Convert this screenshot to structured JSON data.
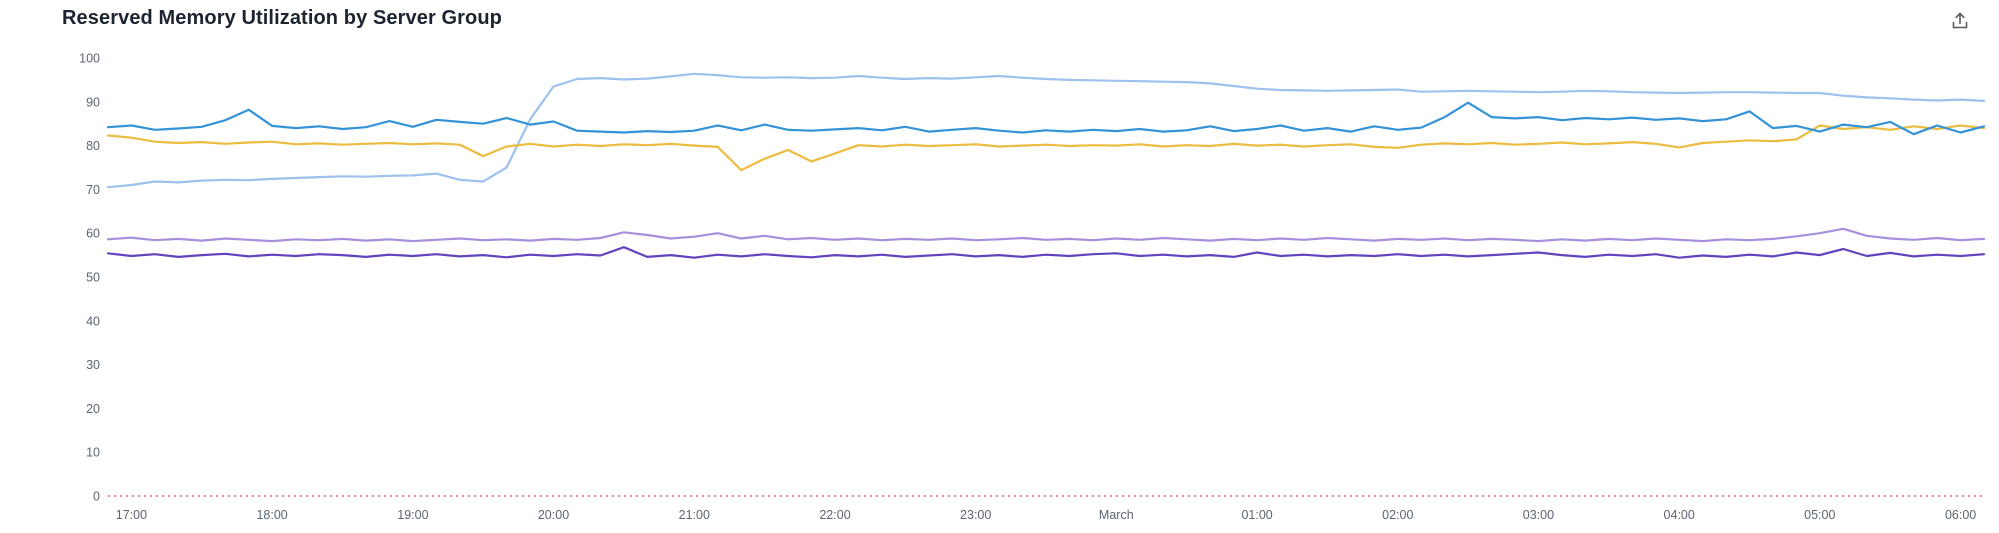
{
  "header": {
    "title": "Reserved Memory Utilization by Server Group"
  },
  "chart_data": {
    "type": "line",
    "title": "Reserved Memory Utilization by Server Group",
    "legend": "none",
    "grid": false,
    "x_axis": {
      "start_time": "16:50",
      "end_time": "06:10",
      "sample_interval_minutes": 10,
      "range_minutes": [
        0,
        800
      ],
      "tick_labels": [
        "17:00",
        "18:00",
        "19:00",
        "20:00",
        "21:00",
        "22:00",
        "23:00",
        "March",
        "01:00",
        "02:00",
        "03:00",
        "04:00",
        "05:00",
        "06:00"
      ],
      "tick_minutes": [
        10,
        70,
        130,
        190,
        250,
        310,
        370,
        430,
        490,
        550,
        610,
        670,
        730,
        790
      ]
    },
    "y_axis": {
      "min": 0,
      "max": 100,
      "ticks": [
        0,
        10,
        20,
        30,
        40,
        50,
        60,
        70,
        80,
        90,
        100
      ]
    },
    "threshold_line": {
      "value": 0,
      "color": "#d13212",
      "style": "dashed"
    },
    "series": [
      {
        "name": "light-blue",
        "color": "#9dc2ee",
        "values": [
          70.5,
          71,
          71.8,
          71.6,
          72,
          72.2,
          72.1,
          72.4,
          72.6,
          72.8,
          73,
          72.9,
          73.1,
          73.2,
          73.6,
          72.2,
          71.8,
          75,
          86,
          93.5,
          95.2,
          95.4,
          95.1,
          95.3,
          95.8,
          96.4,
          96.1,
          95.6,
          95.5,
          95.6,
          95.4,
          95.5,
          95.9,
          95.5,
          95.2,
          95.4,
          95.3,
          95.6,
          95.9,
          95.5,
          95.2,
          95,
          94.9,
          94.8,
          94.7,
          94.6,
          94.5,
          94.2,
          93.6,
          93,
          92.7,
          92.6,
          92.5,
          92.6,
          92.7,
          92.8,
          92.3,
          92.4,
          92.5,
          92.4,
          92.3,
          92.2,
          92.3,
          92.5,
          92.4,
          92.2,
          92.1,
          92,
          92.1,
          92.2,
          92.2,
          92.1,
          92,
          92,
          91.4,
          91,
          90.8,
          90.5,
          90.3,
          90.5,
          90.2
        ]
      },
      {
        "name": "gold",
        "color": "#ecbc41",
        "values": [
          82.3,
          81.8,
          80.9,
          80.6,
          80.8,
          80.4,
          80.7,
          80.9,
          80.3,
          80.5,
          80.2,
          80.4,
          80.6,
          80.3,
          80.5,
          80.2,
          77.6,
          79.8,
          80.4,
          79.8,
          80.2,
          79.9,
          80.3,
          80.1,
          80.4,
          80,
          79.7,
          74.4,
          77,
          79,
          76.4,
          78.2,
          80.1,
          79.8,
          80.2,
          79.9,
          80.1,
          80.3,
          79.8,
          80,
          80.2,
          79.9,
          80.1,
          80,
          80.3,
          79.8,
          80.1,
          79.9,
          80.4,
          80,
          80.2,
          79.8,
          80.1,
          80.3,
          79.7,
          79.5,
          80.2,
          80.5,
          80.3,
          80.6,
          80.2,
          80.4,
          80.7,
          80.3,
          80.5,
          80.8,
          80.4,
          79.6,
          80.6,
          80.9,
          81.2,
          81,
          81.4,
          84.6,
          83.8,
          84.2,
          83.6,
          84.4,
          83.8,
          84.6,
          84
        ]
      },
      {
        "name": "blue",
        "color": "#3493d6",
        "values": [
          84.2,
          84.6,
          83.6,
          83.9,
          84.3,
          85.8,
          88.2,
          84.5,
          84,
          84.4,
          83.8,
          84.2,
          85.6,
          84.3,
          85.9,
          85.4,
          85,
          86.3,
          84.8,
          85.5,
          83.4,
          83.2,
          83,
          83.3,
          83.1,
          83.4,
          84.6,
          83.5,
          84.8,
          83.6,
          83.4,
          83.7,
          84,
          83.5,
          84.3,
          83.2,
          83.6,
          84,
          83.4,
          83,
          83.5,
          83.2,
          83.6,
          83.3,
          83.8,
          83.2,
          83.5,
          84.4,
          83.3,
          83.8,
          84.6,
          83.4,
          84,
          83.2,
          84.4,
          83.6,
          84.1,
          86.5,
          89.8,
          86.5,
          86.2,
          86.5,
          85.8,
          86.3,
          86,
          86.4,
          85.9,
          86.2,
          85.6,
          86,
          87.8,
          84,
          84.5,
          83.2,
          84.8,
          84.2,
          85.4,
          82.6,
          84.6,
          83,
          84.4
        ]
      },
      {
        "name": "light-purple",
        "color": "#a78fdd",
        "values": [
          58.6,
          59,
          58.4,
          58.7,
          58.3,
          58.8,
          58.5,
          58.2,
          58.6,
          58.4,
          58.7,
          58.3,
          58.6,
          58.2,
          58.5,
          58.8,
          58.4,
          58.6,
          58.3,
          58.7,
          58.5,
          58.9,
          60.2,
          59.6,
          58.8,
          59.2,
          60,
          58.8,
          59.4,
          58.6,
          58.9,
          58.5,
          58.8,
          58.4,
          58.7,
          58.5,
          58.8,
          58.4,
          58.6,
          58.9,
          58.5,
          58.7,
          58.4,
          58.8,
          58.5,
          58.9,
          58.6,
          58.3,
          58.7,
          58.4,
          58.8,
          58.5,
          58.9,
          58.6,
          58.3,
          58.7,
          58.5,
          58.8,
          58.4,
          58.7,
          58.5,
          58.2,
          58.6,
          58.3,
          58.7,
          58.4,
          58.8,
          58.5,
          58.2,
          58.6,
          58.4,
          58.7,
          59.3,
          60,
          61,
          59.4,
          58.8,
          58.5,
          58.9,
          58.4,
          58.7
        ]
      },
      {
        "name": "dark-purple",
        "color": "#6243bd",
        "values": [
          55.4,
          54.8,
          55.2,
          54.6,
          55,
          55.3,
          54.7,
          55.1,
          54.8,
          55.2,
          55,
          54.6,
          55.1,
          54.8,
          55.2,
          54.7,
          55,
          54.5,
          55.1,
          54.8,
          55.2,
          54.9,
          56.8,
          54.6,
          55,
          54.4,
          55.1,
          54.7,
          55.2,
          54.8,
          54.5,
          55,
          54.7,
          55.1,
          54.6,
          54.9,
          55.2,
          54.7,
          55,
          54.6,
          55.1,
          54.8,
          55.2,
          55.4,
          54.8,
          55.1,
          54.7,
          55,
          54.6,
          55.6,
          54.8,
          55.1,
          54.7,
          55,
          54.8,
          55.2,
          54.8,
          55.1,
          54.7,
          55,
          55.3,
          55.6,
          55,
          54.6,
          55.1,
          54.8,
          55.2,
          54.4,
          54.9,
          54.6,
          55.1,
          54.7,
          55.6,
          55,
          56.4,
          54.8,
          55.5,
          54.7,
          55.1,
          54.8,
          55.2
        ]
      }
    ]
  }
}
